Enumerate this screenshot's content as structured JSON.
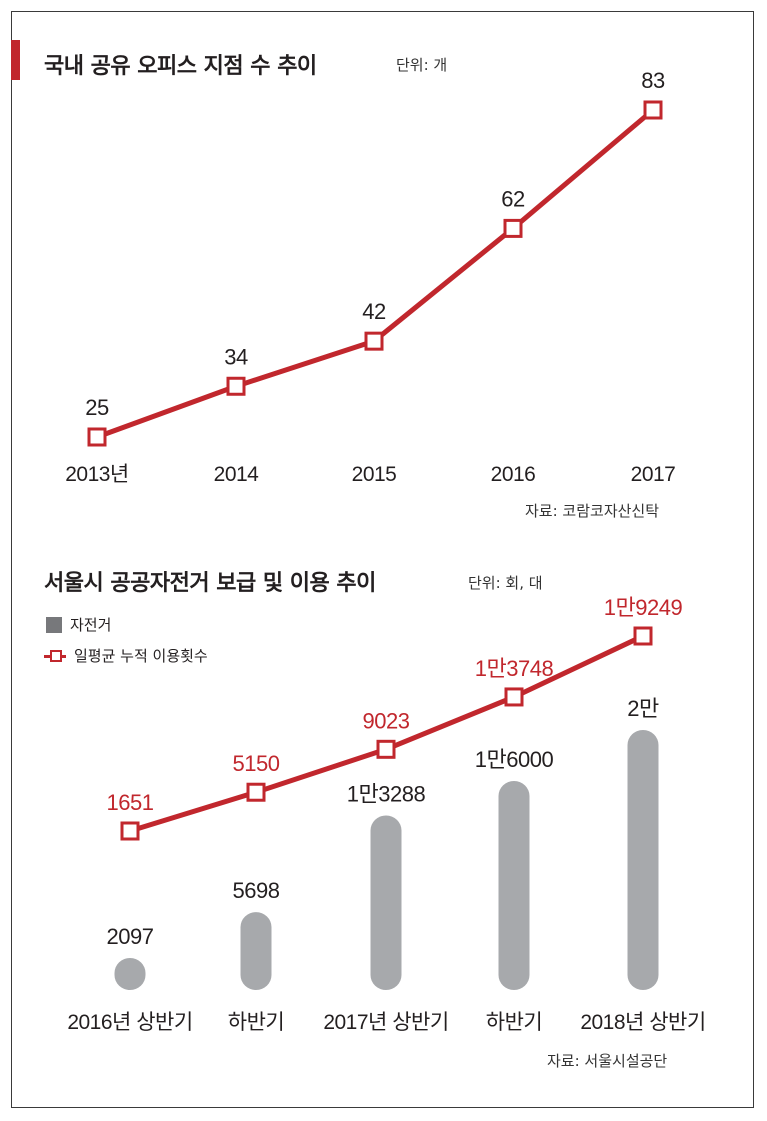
{
  "colors": {
    "accent_red": "#c1272d",
    "bar_gray": "#a7a9ac",
    "legend_gray": "#77787b",
    "text": "#231f20"
  },
  "chart1": {
    "title": "국내 공유 오피스 지점 수 추이",
    "unit": "단위: 개",
    "source": "자료: 코람코자산신탁"
  },
  "chart2": {
    "title": "서울시 공공자전거 보급 및 이용 추이",
    "unit": "단위: 회, 대",
    "source": "자료: 서울시설공단",
    "legend": {
      "bars": "자전거",
      "line": "일평균 누적 이용횟수"
    }
  },
  "chart_data": [
    {
      "type": "line",
      "title": "국내 공유 오피스 지점 수 추이",
      "unit": "개",
      "categories": [
        "2013년",
        "2014",
        "2015",
        "2016",
        "2017"
      ],
      "series": [
        {
          "values": [
            25,
            34,
            42,
            62,
            83
          ],
          "labels": [
            "25",
            "34",
            "42",
            "62",
            "83"
          ],
          "color": "#c1272d",
          "marker": "hollow-square"
        }
      ],
      "grid": false
    },
    {
      "type": "bar",
      "title": "서울시 공공자전거 보급 및 이용 추이",
      "unit": "회, 대",
      "categories": [
        "2016년 상반기",
        "하반기",
        "2017년 상반기",
        "하반기",
        "2018년 상반기"
      ],
      "series": [
        {
          "name": "자전거",
          "type": "bar",
          "values": [
            2097,
            5698,
            13288,
            16000,
            20000
          ],
          "labels": [
            "2097",
            "5698",
            "1만3288",
            "1만6000",
            "2만"
          ],
          "color": "#a7a9ac"
        },
        {
          "name": "일평균 누적 이용횟수",
          "type": "line",
          "values": [
            1651,
            5150,
            9023,
            13748,
            19249
          ],
          "labels": [
            "1651",
            "5150",
            "9023",
            "1만3748",
            "1만9249"
          ],
          "color": "#c1272d",
          "marker": "hollow-square"
        }
      ],
      "legend": "top-left",
      "grid": false
    }
  ]
}
